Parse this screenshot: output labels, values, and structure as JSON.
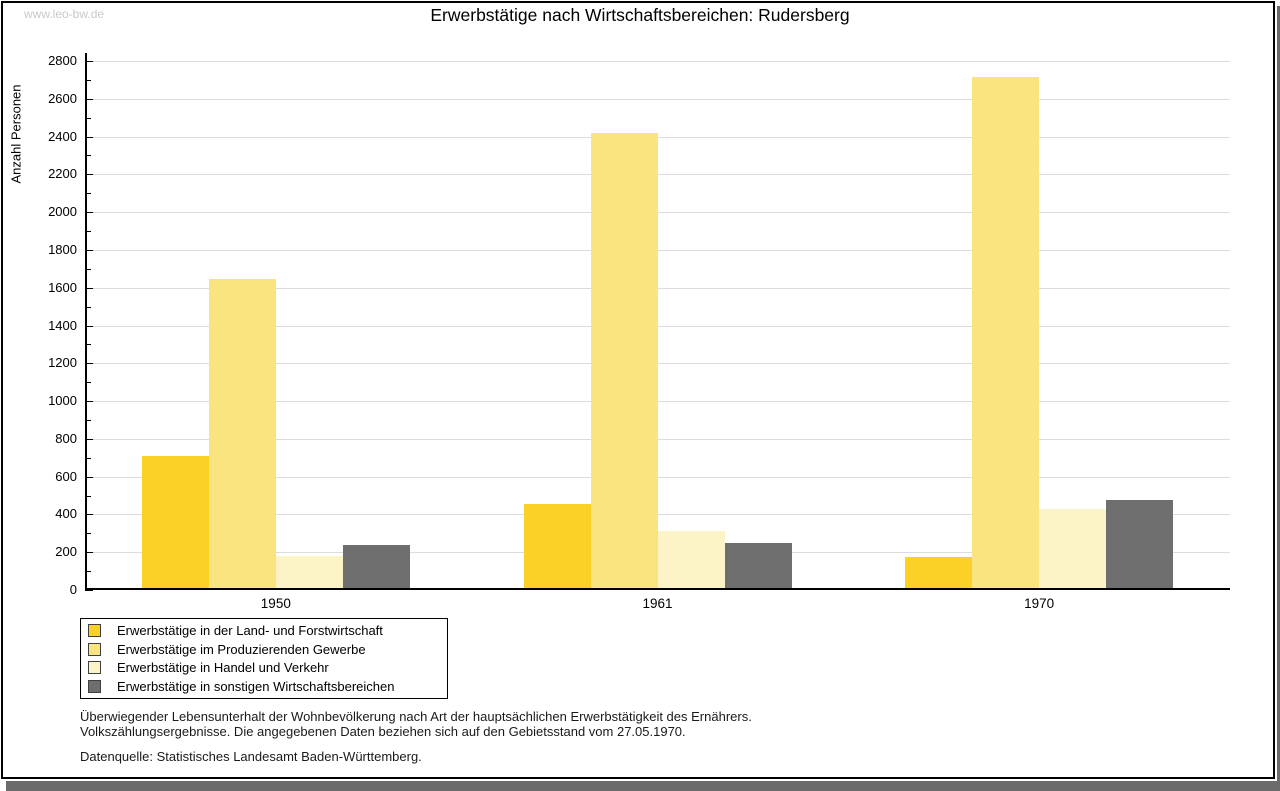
{
  "watermark": "www.leo-bw.de",
  "title": "Erwerbstätige nach Wirtschaftsbereichen: Rudersberg",
  "chart_data": {
    "type": "bar",
    "title": "Erwerbstätige nach Wirtschaftsbereichen: Rudersberg",
    "xlabel": "",
    "ylabel": "Anzahl Personen",
    "categories": [
      "1950",
      "1961",
      "1970"
    ],
    "series": [
      {
        "name": "Erwerbstätige in der Land- und Forstwirtschaft",
        "color": "#FBD128",
        "values": [
          700,
          445,
          165
        ]
      },
      {
        "name": "Erwerbstätige im Produzierenden Gewerbe",
        "color": "#FAE47F",
        "values": [
          1635,
          2410,
          2705
        ]
      },
      {
        "name": "Erwerbstätige in Handel und Verkehr",
        "color": "#FCF3C6",
        "values": [
          170,
          300,
          420
        ]
      },
      {
        "name": "Erwerbstätige in sonstigen Wirtschaftsbereichen",
        "color": "#6E6E6E",
        "values": [
          225,
          240,
          465
        ]
      }
    ],
    "ylim": [
      0,
      2800
    ],
    "ytick_step": 200,
    "yminor_step": 100,
    "grid": true,
    "legend_position": "bottom-left",
    "grid_color": "#dcdcdc"
  },
  "footnotes": {
    "line1": "Überwiegender Lebensunterhalt der Wohnbevölkerung nach Art der hauptsächlichen Erwerbstätigkeit des Ernährers.",
    "line2": "Volkszählungsergebnisse. Die angegebenen Daten beziehen sich auf den Gebietsstand vom 27.05.1970.",
    "source": "Datenquelle: Statistisches Landesamt Baden-Württemberg."
  }
}
